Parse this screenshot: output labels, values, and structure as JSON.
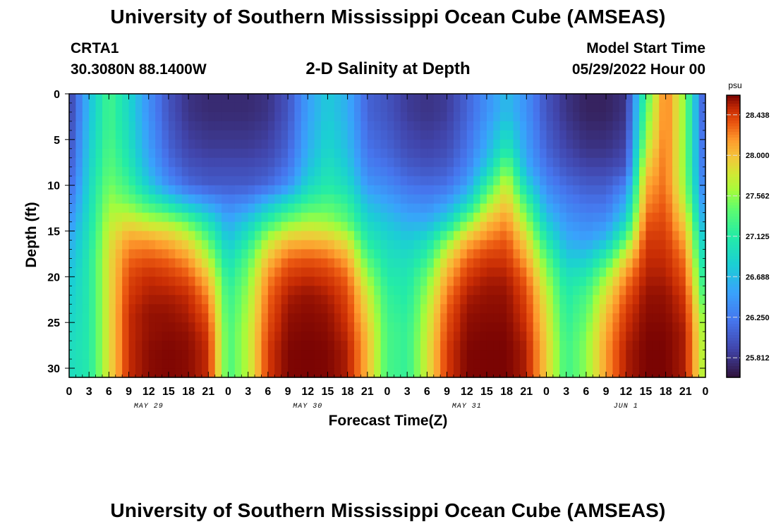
{
  "header": {
    "title": "University of Southern Mississippi Ocean Cube (AMSEAS)",
    "station": "CRTA1",
    "coords": "30.3080N  88.1400W",
    "subtitle": "2-D Salinity at Depth",
    "model_start_label": "Model Start Time",
    "model_start_value": "05/29/2022 Hour 00"
  },
  "footer": {
    "title": "University of Southern Mississippi Ocean Cube (AMSEAS)"
  },
  "colors": {
    "background": "#ffffff",
    "text": "#000000"
  },
  "chart_data": {
    "type": "heatmap",
    "title": "2-D Salinity at Depth",
    "xlabel": "Forecast Time(Z)",
    "ylabel": "Depth (ft)",
    "colorbar_unit": "psu",
    "colormap": "turbo",
    "x_tick_labels": [
      "0",
      "3",
      "6",
      "9",
      "12",
      "15",
      "18",
      "21",
      "0",
      "3",
      "6",
      "9",
      "12",
      "15",
      "18",
      "21",
      "0",
      "3",
      "6",
      "9",
      "12",
      "15",
      "18",
      "21",
      "0",
      "3",
      "6",
      "9",
      "12",
      "15",
      "18",
      "21",
      "0"
    ],
    "day_labels": [
      "MAY 29",
      "MAY 30",
      "MAY 31",
      "JUN 1"
    ],
    "x_range_hours": [
      0,
      96
    ],
    "y_ticks": [
      0,
      5,
      10,
      15,
      20,
      25,
      30
    ],
    "y_range_ft": [
      0,
      31
    ],
    "y_inverted": true,
    "colorbar_ticks": [
      "28.438",
      "28.000",
      "27.562",
      "27.125",
      "26.688",
      "26.250",
      "25.812"
    ],
    "colorbar_range": [
      25.6,
      28.65
    ],
    "time_hours": [
      0,
      3,
      6,
      9,
      12,
      15,
      18,
      21,
      24,
      27,
      30,
      33,
      36,
      39,
      42,
      45,
      48,
      51,
      54,
      57,
      60,
      63,
      66,
      69,
      72,
      75,
      78,
      81,
      84,
      87,
      90,
      93,
      96
    ],
    "depth_ft": [
      0,
      2,
      4,
      6,
      8,
      10,
      12,
      14,
      16,
      18,
      20,
      22,
      24,
      26,
      28,
      30
    ],
    "salinity": [
      [
        25.85,
        26.7,
        27.3,
        26.9,
        26.4,
        26.0,
        25.8,
        25.75,
        25.75,
        25.75,
        25.8,
        26.0,
        26.5,
        26.8,
        26.6,
        26.1,
        26.0,
        25.85,
        25.8,
        25.85,
        26.1,
        26.4,
        26.7,
        26.4,
        26.0,
        25.8,
        25.7,
        25.7,
        25.8,
        27.3,
        28.3,
        27.5,
        25.9
      ],
      [
        25.85,
        26.7,
        27.3,
        26.9,
        26.4,
        26.0,
        25.8,
        25.75,
        25.75,
        25.75,
        25.8,
        26.0,
        26.5,
        26.8,
        26.6,
        26.1,
        26.0,
        25.85,
        25.8,
        25.85,
        26.1,
        26.4,
        26.7,
        26.4,
        26.0,
        25.8,
        25.7,
        25.7,
        25.8,
        27.4,
        28.3,
        27.5,
        25.9
      ],
      [
        25.9,
        26.75,
        27.3,
        26.95,
        26.45,
        26.05,
        25.85,
        25.8,
        25.8,
        25.8,
        25.85,
        26.05,
        26.55,
        26.85,
        26.65,
        26.15,
        26.05,
        25.9,
        25.85,
        25.9,
        26.15,
        26.5,
        26.9,
        26.45,
        26.05,
        25.85,
        25.75,
        25.75,
        25.85,
        27.5,
        28.3,
        27.5,
        25.95
      ],
      [
        25.95,
        26.8,
        27.35,
        27.0,
        26.5,
        26.1,
        25.9,
        25.85,
        25.85,
        25.85,
        25.9,
        26.1,
        26.6,
        26.9,
        26.7,
        26.2,
        26.1,
        25.95,
        25.9,
        25.95,
        26.2,
        26.6,
        27.1,
        26.5,
        26.1,
        25.9,
        25.8,
        25.8,
        25.9,
        27.7,
        28.3,
        27.5,
        26.0
      ],
      [
        26.0,
        26.85,
        27.4,
        27.1,
        26.6,
        26.2,
        26.0,
        25.95,
        25.95,
        25.95,
        26.0,
        26.2,
        26.7,
        27.0,
        26.8,
        26.3,
        26.2,
        26.05,
        26.0,
        26.05,
        26.3,
        26.8,
        27.5,
        26.6,
        26.2,
        26.0,
        25.9,
        25.9,
        26.0,
        27.9,
        28.3,
        27.5,
        26.05
      ],
      [
        26.1,
        26.9,
        27.5,
        27.25,
        26.8,
        26.4,
        26.15,
        26.05,
        26.05,
        26.05,
        26.15,
        26.4,
        26.9,
        27.1,
        26.95,
        26.45,
        26.35,
        26.2,
        26.15,
        26.2,
        26.5,
        27.2,
        27.8,
        26.9,
        26.35,
        26.15,
        26.05,
        26.05,
        26.3,
        28.1,
        28.3,
        27.55,
        26.15
      ],
      [
        26.25,
        26.95,
        27.6,
        27.5,
        27.25,
        27.0,
        26.7,
        26.5,
        26.3,
        26.4,
        26.7,
        27.0,
        27.25,
        27.35,
        27.2,
        26.7,
        26.55,
        26.4,
        26.35,
        26.5,
        26.9,
        27.6,
        28.0,
        27.3,
        26.55,
        26.3,
        26.2,
        26.2,
        26.6,
        28.2,
        28.35,
        27.7,
        26.3
      ],
      [
        26.4,
        27.0,
        27.7,
        27.85,
        27.7,
        27.65,
        27.4,
        27.0,
        26.55,
        26.8,
        27.2,
        27.5,
        27.65,
        27.6,
        27.4,
        26.9,
        26.75,
        26.6,
        26.6,
        26.9,
        27.5,
        28.0,
        28.2,
        27.6,
        26.8,
        26.45,
        26.35,
        26.4,
        26.9,
        28.35,
        28.4,
        27.9,
        26.45
      ],
      [
        26.55,
        27.05,
        27.8,
        28.15,
        28.15,
        28.05,
        27.85,
        27.4,
        26.75,
        27.1,
        27.7,
        28.0,
        28.05,
        28.0,
        27.8,
        27.1,
        26.9,
        26.8,
        26.95,
        27.5,
        28.05,
        28.25,
        28.35,
        27.9,
        27.1,
        26.6,
        26.5,
        26.7,
        27.4,
        28.45,
        28.45,
        28.1,
        26.65
      ],
      [
        26.65,
        27.1,
        27.85,
        28.3,
        28.35,
        28.3,
        28.15,
        27.7,
        26.95,
        27.35,
        28.0,
        28.3,
        28.35,
        28.3,
        28.1,
        27.35,
        27.0,
        26.95,
        27.2,
        27.9,
        28.3,
        28.45,
        28.45,
        28.1,
        27.4,
        26.8,
        26.8,
        27.2,
        27.9,
        28.5,
        28.5,
        28.25,
        26.8
      ],
      [
        26.75,
        27.1,
        27.85,
        28.4,
        28.5,
        28.45,
        28.35,
        28.0,
        27.1,
        27.5,
        28.2,
        28.45,
        28.5,
        28.45,
        28.3,
        27.6,
        27.1,
        27.05,
        27.45,
        28.1,
        28.45,
        28.55,
        28.55,
        28.3,
        27.6,
        27.0,
        27.1,
        27.6,
        28.2,
        28.55,
        28.55,
        28.35,
        27.0
      ],
      [
        26.8,
        27.1,
        27.85,
        28.45,
        28.55,
        28.55,
        28.5,
        28.2,
        27.2,
        27.6,
        28.3,
        28.55,
        28.6,
        28.55,
        28.4,
        27.8,
        27.2,
        27.1,
        27.6,
        28.25,
        28.55,
        28.6,
        28.6,
        28.4,
        27.75,
        27.1,
        27.3,
        27.85,
        28.35,
        28.6,
        28.6,
        28.45,
        27.2
      ],
      [
        26.85,
        27.1,
        27.85,
        28.5,
        28.6,
        28.6,
        28.55,
        28.35,
        27.25,
        27.65,
        28.35,
        28.6,
        28.62,
        28.6,
        28.45,
        27.9,
        27.25,
        27.15,
        27.7,
        28.35,
        28.6,
        28.62,
        28.62,
        28.45,
        27.85,
        27.15,
        27.4,
        28.0,
        28.45,
        28.62,
        28.62,
        28.5,
        27.4
      ],
      [
        26.9,
        27.1,
        27.85,
        28.5,
        28.6,
        28.62,
        28.6,
        28.45,
        27.3,
        27.7,
        28.4,
        28.62,
        28.64,
        28.62,
        28.5,
        28.0,
        27.3,
        27.2,
        27.75,
        28.4,
        28.62,
        28.64,
        28.64,
        28.5,
        27.9,
        27.2,
        27.5,
        28.1,
        28.5,
        28.64,
        28.64,
        28.55,
        27.5
      ],
      [
        26.95,
        27.1,
        27.85,
        28.5,
        28.62,
        28.64,
        28.62,
        28.5,
        27.3,
        27.7,
        28.45,
        28.64,
        28.65,
        28.64,
        28.55,
        28.05,
        27.3,
        27.2,
        27.8,
        28.45,
        28.64,
        28.65,
        28.65,
        28.55,
        27.95,
        27.25,
        27.55,
        28.15,
        28.55,
        28.65,
        28.65,
        28.55,
        27.55
      ],
      [
        26.95,
        27.1,
        27.85,
        28.5,
        28.62,
        28.64,
        28.62,
        28.5,
        27.3,
        27.7,
        28.45,
        28.64,
        28.65,
        28.64,
        28.55,
        28.05,
        27.3,
        27.2,
        27.8,
        28.45,
        28.64,
        28.65,
        28.65,
        28.55,
        27.95,
        27.25,
        27.55,
        28.15,
        28.55,
        28.65,
        28.65,
        28.55,
        27.55
      ]
    ]
  }
}
